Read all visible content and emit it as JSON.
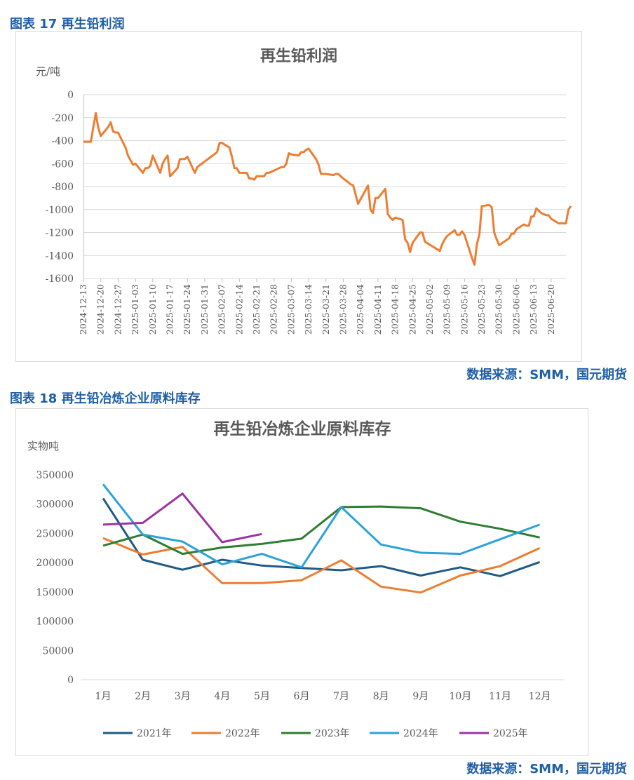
{
  "figure1": {
    "caption": "图表 17 再生铅利润",
    "source": "数据来源：SMM，国元期货"
  },
  "figure2": {
    "caption": "图表 18 再生铅冶炼企业原料库存",
    "source": "数据来源：SMM，国元期货"
  },
  "colors": {
    "caption": "#1f5fa6",
    "profit_line": "#ed7d31",
    "s2021": "#1f5b86",
    "s2022": "#ed7d31",
    "s2023": "#2e7d32",
    "s2024": "#2aa3d8",
    "s2025": "#9b34a0"
  },
  "chart_data": [
    {
      "type": "line",
      "title": "再生铅利润",
      "ylabel": "元/吨",
      "ylim": [
        -1600,
        0
      ],
      "yticks": [
        0,
        -200,
        -400,
        -600,
        -800,
        -1000,
        -1200,
        -1400,
        -1600
      ],
      "x_tick_labels": [
        "2024-12-13",
        "2024-12-20",
        "2024-12-27",
        "2025-01-03",
        "2025-01-10",
        "2025-01-17",
        "2025-01-24",
        "2025-01-31",
        "2025-02-07",
        "2025-02-14",
        "2025-02-21",
        "2025-02-28",
        "2025-03-07",
        "2025-03-14",
        "2025-03-21",
        "2025-03-28",
        "2025-04-04",
        "2025-04-11",
        "2025-04-18",
        "2025-04-25",
        "2025-05-02",
        "2025-05-09",
        "2025-05-16",
        "2025-05-23",
        "2025-05-30",
        "2025-06-06",
        "2025-06-13",
        "2025-06-20"
      ],
      "x_range": [
        "2024-12-13",
        "2025-06-26"
      ],
      "grid": true,
      "series": [
        {
          "points": [
            [
              "2024-12-13",
              -410
            ],
            [
              "2024-12-16",
              -410
            ],
            [
              "2024-12-17",
              -280
            ],
            [
              "2024-12-18",
              -160
            ],
            [
              "2024-12-19",
              -290
            ],
            [
              "2024-12-20",
              -360
            ],
            [
              "2024-12-23",
              -280
            ],
            [
              "2024-12-24",
              -240
            ],
            [
              "2024-12-25",
              -320
            ],
            [
              "2024-12-26",
              -330
            ],
            [
              "2024-12-27",
              -330
            ],
            [
              "2024-12-30",
              -460
            ],
            [
              "2024-12-31",
              -530
            ],
            [
              "2025-01-02",
              -610
            ],
            [
              "2025-01-03",
              -600
            ],
            [
              "2025-01-06",
              -680
            ],
            [
              "2025-01-07",
              -640
            ],
            [
              "2025-01-08",
              -640
            ],
            [
              "2025-01-09",
              -620
            ],
            [
              "2025-01-10",
              -530
            ],
            [
              "2025-01-13",
              -680
            ],
            [
              "2025-01-14",
              -600
            ],
            [
              "2025-01-15",
              -560
            ],
            [
              "2025-01-16",
              -530
            ],
            [
              "2025-01-17",
              -710
            ],
            [
              "2025-01-20",
              -640
            ],
            [
              "2025-01-21",
              -560
            ],
            [
              "2025-01-22",
              -560
            ],
            [
              "2025-01-23",
              -560
            ],
            [
              "2025-01-24",
              -540
            ],
            [
              "2025-01-27",
              -680
            ],
            [
              "2025-01-28",
              -630
            ],
            [
              "2025-02-05",
              -500
            ],
            [
              "2025-02-06",
              -420
            ],
            [
              "2025-02-07",
              -420
            ],
            [
              "2025-02-10",
              -460
            ],
            [
              "2025-02-11",
              -540
            ],
            [
              "2025-02-12",
              -640
            ],
            [
              "2025-02-13",
              -640
            ],
            [
              "2025-02-14",
              -680
            ],
            [
              "2025-02-17",
              -680
            ],
            [
              "2025-02-18",
              -730
            ],
            [
              "2025-02-19",
              -730
            ],
            [
              "2025-02-20",
              -740
            ],
            [
              "2025-02-21",
              -710
            ],
            [
              "2025-02-24",
              -710
            ],
            [
              "2025-02-25",
              -680
            ],
            [
              "2025-02-26",
              -680
            ],
            [
              "2025-02-27",
              -670
            ],
            [
              "2025-02-28",
              -660
            ],
            [
              "2025-03-03",
              -630
            ],
            [
              "2025-03-04",
              -630
            ],
            [
              "2025-03-05",
              -600
            ],
            [
              "2025-03-06",
              -510
            ],
            [
              "2025-03-07",
              -520
            ],
            [
              "2025-03-10",
              -530
            ],
            [
              "2025-03-11",
              -500
            ],
            [
              "2025-03-12",
              -500
            ],
            [
              "2025-03-13",
              -480
            ],
            [
              "2025-03-14",
              -470
            ],
            [
              "2025-03-17",
              -560
            ],
            [
              "2025-03-18",
              -610
            ],
            [
              "2025-03-19",
              -690
            ],
            [
              "2025-03-20",
              -690
            ],
            [
              "2025-03-21",
              -690
            ],
            [
              "2025-03-24",
              -700
            ],
            [
              "2025-03-25",
              -690
            ],
            [
              "2025-03-26",
              -690
            ],
            [
              "2025-03-27",
              -710
            ],
            [
              "2025-03-28",
              -730
            ],
            [
              "2025-03-31",
              -780
            ],
            [
              "2025-04-01",
              -790
            ],
            [
              "2025-04-02",
              -870
            ],
            [
              "2025-04-03",
              -950
            ],
            [
              "2025-04-07",
              -790
            ],
            [
              "2025-04-08",
              -1000
            ],
            [
              "2025-04-09",
              -1030
            ],
            [
              "2025-04-10",
              -900
            ],
            [
              "2025-04-11",
              -900
            ],
            [
              "2025-04-14",
              -820
            ],
            [
              "2025-04-15",
              -1040
            ],
            [
              "2025-04-16",
              -1070
            ],
            [
              "2025-04-17",
              -1090
            ],
            [
              "2025-04-18",
              -1070
            ],
            [
              "2025-04-21",
              -1090
            ],
            [
              "2025-04-22",
              -1260
            ],
            [
              "2025-04-23",
              -1290
            ],
            [
              "2025-04-24",
              -1370
            ],
            [
              "2025-04-25",
              -1290
            ],
            [
              "2025-04-28",
              -1200
            ],
            [
              "2025-04-29",
              -1200
            ],
            [
              "2025-04-30",
              -1280
            ],
            [
              "2025-05-06",
              -1360
            ],
            [
              "2025-05-07",
              -1300
            ],
            [
              "2025-05-08",
              -1260
            ],
            [
              "2025-05-09",
              -1230
            ],
            [
              "2025-05-12",
              -1180
            ],
            [
              "2025-05-13",
              -1220
            ],
            [
              "2025-05-14",
              -1220
            ],
            [
              "2025-05-15",
              -1190
            ],
            [
              "2025-05-16",
              -1220
            ],
            [
              "2025-05-19",
              -1420
            ],
            [
              "2025-05-20",
              -1480
            ],
            [
              "2025-05-21",
              -1300
            ],
            [
              "2025-05-22",
              -1220
            ],
            [
              "2025-05-23",
              -970
            ],
            [
              "2025-05-26",
              -960
            ],
            [
              "2025-05-27",
              -980
            ],
            [
              "2025-05-28",
              -1200
            ],
            [
              "2025-05-29",
              -1260
            ],
            [
              "2025-05-30",
              -1310
            ],
            [
              "2025-06-03",
              -1250
            ],
            [
              "2025-06-04",
              -1210
            ],
            [
              "2025-06-05",
              -1210
            ],
            [
              "2025-06-06",
              -1170
            ],
            [
              "2025-06-09",
              -1130
            ],
            [
              "2025-06-10",
              -1140
            ],
            [
              "2025-06-11",
              -1140
            ],
            [
              "2025-06-12",
              -1060
            ],
            [
              "2025-06-13",
              -1060
            ],
            [
              "2025-06-14",
              -990
            ],
            [
              "2025-06-16",
              -1030
            ],
            [
              "2025-06-17",
              -1040
            ],
            [
              "2025-06-18",
              -1050
            ],
            [
              "2025-06-19",
              -1050
            ],
            [
              "2025-06-20",
              -1080
            ],
            [
              "2025-06-23",
              -1120
            ],
            [
              "2025-06-24",
              -1120
            ],
            [
              "2025-06-25",
              -1120
            ],
            [
              "2025-06-26",
              -1120
            ],
            [
              "2025-06-27",
              -1000
            ],
            [
              "2025-06-28",
              -970
            ]
          ]
        }
      ]
    },
    {
      "type": "line",
      "title": "再生铅冶炼企业原料库存",
      "ylabel": "实物吨",
      "ylim": [
        0,
        350000
      ],
      "yticks": [
        0,
        50000,
        100000,
        150000,
        200000,
        250000,
        300000,
        350000
      ],
      "categories": [
        "1月",
        "2月",
        "3月",
        "4月",
        "5月",
        "6月",
        "7月",
        "8月",
        "9月",
        "10月",
        "11月",
        "12月"
      ],
      "legend": "bottom",
      "grid": false,
      "series": [
        {
          "name": "2021年",
          "values": [
            310000,
            205000,
            188000,
            205000,
            195000,
            191000,
            187000,
            194000,
            178000,
            192000,
            177000,
            201000
          ]
        },
        {
          "name": "2022年",
          "values": [
            242000,
            214000,
            227000,
            165000,
            165000,
            170000,
            204000,
            159000,
            149000,
            178000,
            194000,
            225000
          ]
        },
        {
          "name": "2023年",
          "values": [
            229000,
            248000,
            215000,
            226000,
            232000,
            241000,
            295000,
            296000,
            293000,
            270000,
            258000,
            243000
          ]
        },
        {
          "name": "2024年",
          "values": [
            334000,
            248000,
            236000,
            197000,
            215000,
            192000,
            295000,
            231000,
            217000,
            215000,
            240000,
            265000
          ]
        },
        {
          "name": "2025年",
          "values": [
            265000,
            268000,
            318000,
            235000,
            249000,
            null,
            null,
            null,
            null,
            null,
            null,
            null
          ]
        }
      ]
    }
  ]
}
